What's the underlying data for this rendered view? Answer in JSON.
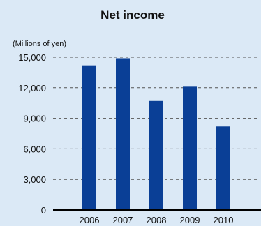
{
  "chart_data": {
    "type": "bar",
    "title": "Net income",
    "unit_label": "(Millions of yen)",
    "categories": [
      "2006",
      "2007",
      "2008",
      "2009",
      "2010"
    ],
    "values": [
      14200,
      14900,
      10700,
      12100,
      8200
    ],
    "yticks": [
      0,
      3000,
      6000,
      9000,
      12000,
      15000
    ],
    "ytick_labels": [
      "0",
      "3,000",
      "6,000",
      "9,000",
      "12,000",
      "15,000"
    ],
    "ylim": [
      0,
      15000
    ],
    "grid": true,
    "bar_color": "#0a3f96"
  }
}
